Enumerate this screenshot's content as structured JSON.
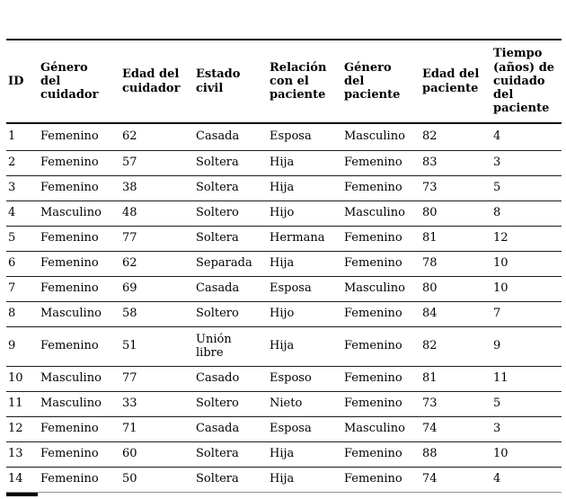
{
  "colors": {
    "background": "#ffffff",
    "text": "#000000",
    "heavy_rule": "#000000",
    "row_rule": "#1c1c1c",
    "last_rule": "#8f8f8f"
  },
  "table": {
    "columns": [
      {
        "id": "id",
        "label": "ID"
      },
      {
        "id": "genero_cuidador",
        "label": "Género\ndel\ncuidador"
      },
      {
        "id": "edad_cuidador",
        "label": "Edad del\ncuidador"
      },
      {
        "id": "estado_civil",
        "label": "Estado\ncivil"
      },
      {
        "id": "relacion_paciente",
        "label": "Relación\ncon el\npaciente"
      },
      {
        "id": "genero_paciente",
        "label": "Género\ndel\npaciente"
      },
      {
        "id": "edad_paciente",
        "label": "Edad del\npaciente"
      },
      {
        "id": "tiempo_cuidado",
        "label": "Tiempo\n(años) de\ncuidado\ndel\npaciente"
      }
    ],
    "rows": [
      [
        "1",
        "Femenino",
        "62",
        "Casada",
        "Esposa",
        "Masculino",
        "82",
        "4"
      ],
      [
        "2",
        "Femenino",
        "57",
        "Soltera",
        "Hija",
        "Femenino",
        "83",
        "3"
      ],
      [
        "3",
        "Femenino",
        "38",
        "Soltera",
        "Hija",
        "Femenino",
        "73",
        "5"
      ],
      [
        "4",
        "Masculino",
        "48",
        "Soltero",
        "Hijo",
        "Masculino",
        "80",
        "8"
      ],
      [
        "5",
        "Femenino",
        "77",
        "Soltera",
        "Hermana",
        "Femenino",
        "81",
        "12"
      ],
      [
        "6",
        "Femenino",
        "62",
        "Separada",
        "Hija",
        "Femenino",
        "78",
        "10"
      ],
      [
        "7",
        "Femenino",
        "69",
        "Casada",
        "Esposa",
        "Masculino",
        "80",
        "10"
      ],
      [
        "8",
        "Masculino",
        "58",
        "Soltero",
        "Hijo",
        "Femenino",
        "84",
        "7"
      ],
      [
        "9",
        "Femenino",
        "51",
        "Unión\nlibre",
        "Hija",
        "Femenino",
        "82",
        "9"
      ],
      [
        "10",
        "Masculino",
        "77",
        "Casado",
        "Esposo",
        "Femenino",
        "81",
        "11"
      ],
      [
        "11",
        "Masculino",
        "33",
        "Soltero",
        "Nieto",
        "Femenino",
        "73",
        "5"
      ],
      [
        "12",
        "Femenino",
        "71",
        "Casada",
        "Esposa",
        "Masculino",
        "74",
        "3"
      ],
      [
        "13",
        "Femenino",
        "60",
        "Soltera",
        "Hija",
        "Femenino",
        "88",
        "10"
      ],
      [
        "14",
        "Femenino",
        "50",
        "Soltera",
        "Hija",
        "Femenino",
        "74",
        "4"
      ]
    ]
  }
}
